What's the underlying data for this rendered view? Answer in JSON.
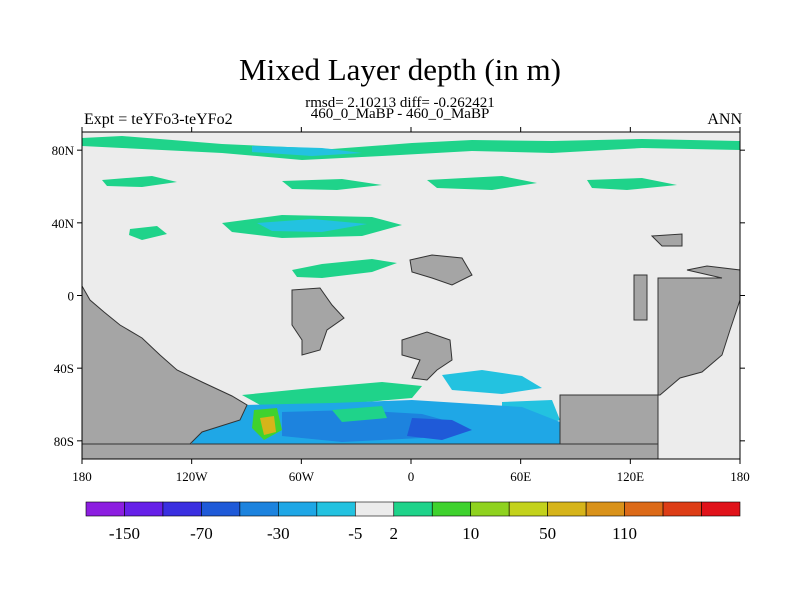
{
  "title": "Mixed Layer depth (in m)",
  "stats": "rmsd= 2.10213 diff= -0.262421",
  "subtitle": "460_0_MaBP - 460_0_MaBP",
  "left_label": "Expt = teYFo3-teYFo2",
  "right_label": "ANN",
  "chart_data": {
    "type": "heatmap",
    "x_ticks": [
      "180",
      "120W",
      "60W",
      "0",
      "60E",
      "120E",
      "180"
    ],
    "x_values": [
      -180,
      -120,
      -60,
      0,
      60,
      120,
      180
    ],
    "y_ticks": [
      "80N",
      "40N",
      "0",
      "40S",
      "80S"
    ],
    "y_values": [
      80,
      40,
      0,
      -40,
      -80
    ],
    "lon_range": [
      -180,
      180
    ],
    "lat_range": [
      -90,
      90
    ],
    "colorbar_labels": [
      "-150",
      "-70",
      "-30",
      "-5",
      "2",
      "10",
      "50",
      "110"
    ],
    "colorbar_colors": [
      "#8c1ee0",
      "#6620e8",
      "#3a2fe0",
      "#1f5ad8",
      "#1d83de",
      "#1fa7e6",
      "#23c2e0",
      "#ececec",
      "#1fd38a",
      "#3fd22e",
      "#8fd21f",
      "#c3d21c",
      "#d6b41a",
      "#d9921a",
      "#dc6a18",
      "#dd3d16",
      "#e0121a"
    ],
    "land_color": "#a5a5a5",
    "ocean_background_color": "#ececec"
  }
}
